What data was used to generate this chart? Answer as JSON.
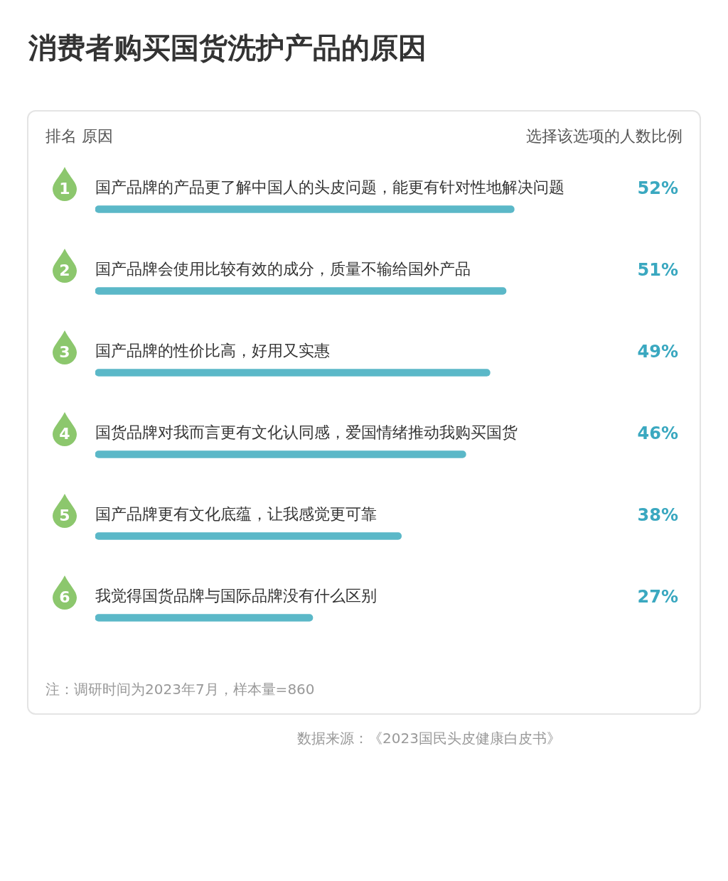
{
  "chart_data": {
    "type": "bar",
    "orientation": "horizontal",
    "title": "消费者购买国货洗护产品的原因",
    "ylabel": "排名 原因",
    "xlabel": "选择该选项的人数比例",
    "categories": [
      "国产品牌的产品更了解中国人的头皮问题，能更有针对性地解决问题",
      "国产品牌会使用比较有效的成分，质量不输给国外产品",
      "国产品牌的性价比高，好用又实惠",
      "国货品牌对我而言更有文化认同感，爱国情绪推动我购买国货",
      "国产品牌更有文化底蕴，让我感觉更可靠",
      "我觉得国货品牌与国际品牌没有什么区别"
    ],
    "values": [
      52,
      51,
      49,
      46,
      38,
      27
    ],
    "value_labels": [
      "52%",
      "51%",
      "49%",
      "46%",
      "38%",
      "27%"
    ],
    "color": "#5bb8c8",
    "tick_labels": false,
    "annotations": [
      "注：调研时间为2023年7月，样本量=860",
      "数据来源：《2023国民头皮健康白皮书》",
      "1",
      "2",
      "3",
      "4",
      "5",
      "6"
    ]
  }
}
